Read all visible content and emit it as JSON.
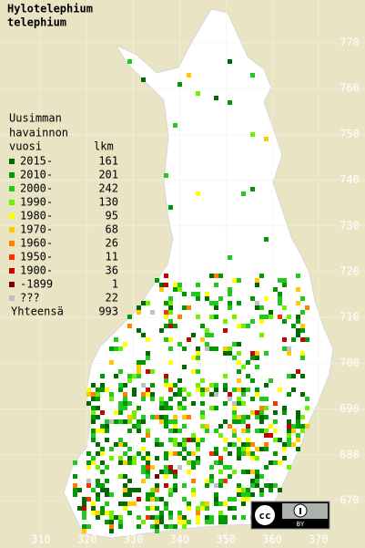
{
  "title": [
    "Hylotelephium",
    "telephium"
  ],
  "legend": {
    "header": [
      "Uusimman",
      "havainnon",
      "vuosi"
    ],
    "count_header": "lkm",
    "items": [
      {
        "label": "2015-",
        "count": 161,
        "color": "#006a00"
      },
      {
        "label": "2010-",
        "count": 201,
        "color": "#009a00"
      },
      {
        "label": "2000-",
        "count": 242,
        "color": "#20c820"
      },
      {
        "label": "1990-",
        "count": 130,
        "color": "#70f000"
      },
      {
        "label": "1980-",
        "count": 95,
        "color": "#ffff00"
      },
      {
        "label": "1970-",
        "count": 68,
        "color": "#ffc800"
      },
      {
        "label": "1960-",
        "count": 26,
        "color": "#ff8000"
      },
      {
        "label": "1950-",
        "count": 11,
        "color": "#ff3000"
      },
      {
        "label": "1900-",
        "count": 36,
        "color": "#c80000"
      },
      {
        "label": "-1899",
        "count": 1,
        "color": "#800000"
      },
      {
        "label": "???",
        "count": 22,
        "color": "#c0c0c0"
      }
    ],
    "total_label": "Yhteensä",
    "total": 993
  },
  "grid": {
    "north": [
      770,
      760,
      750,
      740,
      730,
      720,
      710,
      700,
      690,
      680,
      670
    ],
    "east": [
      310,
      320,
      330,
      340,
      350,
      360,
      370
    ]
  },
  "license": {
    "cc": "cc",
    "by": "BY"
  }
}
